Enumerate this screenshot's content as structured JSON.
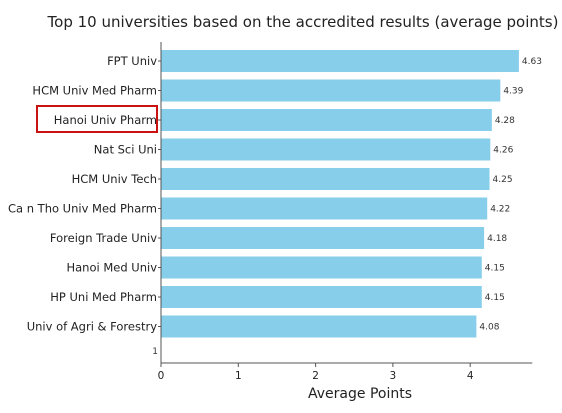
{
  "chart_data": {
    "type": "bar",
    "orientation": "horizontal",
    "title": "Top 10 universities based on the accredited results (average points)",
    "xlabel": "Average Points",
    "ylabel": "",
    "categories": [
      "FPT Univ",
      "HCM Univ Med Pharm",
      "Hanoi Univ Pharm",
      "Nat Sci Uni",
      "HCM Univ Tech",
      "Ca n Tho Univ Med Pharm",
      "Foreign Trade Univ",
      "Hanoi Med Univ",
      "HP Uni Med Pharm",
      "Univ of Agri  & Forestry"
    ],
    "values": [
      4.63,
      4.39,
      4.28,
      4.26,
      4.25,
      4.22,
      4.18,
      4.15,
      4.15,
      4.08
    ],
    "value_labels": [
      "4.63",
      "4.39",
      "4.28",
      "4.26",
      "4.25",
      "4.22",
      "4.18",
      "4.15",
      "4.15",
      "4.08"
    ],
    "xlim": [
      0,
      4.7
    ],
    "xticks": [
      "0",
      "1",
      "2",
      "3",
      "4"
    ],
    "stray_label": "1",
    "highlighted_category": "Hanoi Univ Pharm",
    "grid": false,
    "legend": "none",
    "colors": {
      "bar": "#87CEEB",
      "highlight_box": "#CC1111",
      "axis": "#555555",
      "text": "#222222"
    }
  }
}
